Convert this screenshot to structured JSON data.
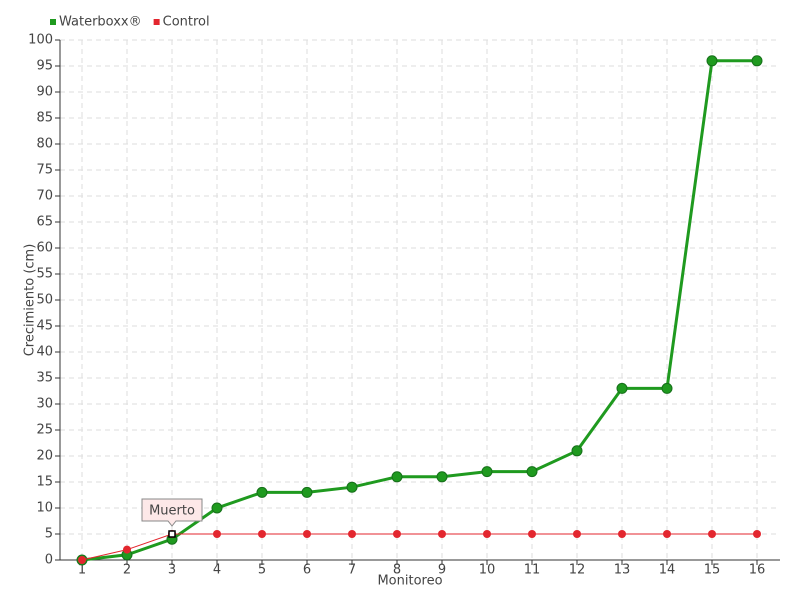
{
  "chart_data": {
    "type": "line",
    "x_label": "Monitoreo",
    "y_label": "Crecimiento (cm)",
    "categories": [
      "1",
      "2",
      "3",
      "4",
      "5",
      "6",
      "7",
      "8",
      "9",
      "10",
      "11",
      "12",
      "13",
      "14",
      "15",
      "16"
    ],
    "series": [
      {
        "name": "Waterboxx®",
        "color": "#1f9a1f",
        "values": [
          0,
          1,
          4,
          10,
          13,
          13,
          14,
          16,
          16,
          17,
          17,
          21,
          33,
          33,
          96,
          96
        ]
      },
      {
        "name": "Control",
        "color": "#e3262e",
        "values": [
          0,
          2,
          5,
          5,
          5,
          5,
          5,
          5,
          5,
          5,
          5,
          5,
          5,
          5,
          5,
          5
        ]
      }
    ],
    "annotation": {
      "text": "Muerto"
    },
    "ylim": [
      0,
      100
    ],
    "yticks": [
      0,
      5,
      10,
      15,
      20,
      25,
      30,
      35,
      40,
      45,
      50,
      55,
      60,
      65,
      70,
      75,
      80,
      85,
      90,
      95,
      100
    ],
    "grid": true,
    "legend": "top-left"
  }
}
